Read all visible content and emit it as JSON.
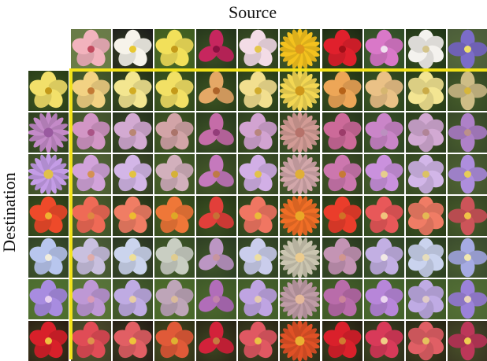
{
  "labels": {
    "source": "Source",
    "destination": "Destination"
  },
  "colors": {
    "frame": "#f2e21a"
  },
  "source_row": [
    {
      "icon": "pink-hibiscus-flower",
      "bg": "#6a7a4a",
      "petal": "#f2b3bd",
      "center": "#c24a5e",
      "n": 5
    },
    {
      "icon": "white-yellow-flower",
      "bg": "#1a1a1a",
      "petal": "#f6f3ea",
      "center": "#e8c830",
      "n": 5
    },
    {
      "icon": "yellow-flower",
      "bg": "#3d5a1e",
      "petal": "#f2e05a",
      "center": "#c49a1a",
      "n": 5
    },
    {
      "icon": "magenta-bud-flower",
      "bg": "#22321a",
      "petal": "#c7265e",
      "center": "#8a1040",
      "n": 3
    },
    {
      "icon": "pink-white-flower",
      "bg": "#2a3a1c",
      "petal": "#f3dce6",
      "center": "#e4c64a",
      "n": 5
    },
    {
      "icon": "yellow-daisy-flower",
      "bg": "#2f4420",
      "petal": "#f4c21e",
      "center": "#e0961a",
      "n": 20
    },
    {
      "icon": "red-geranium-flower",
      "bg": "#1a2612",
      "petal": "#e0202c",
      "center": "#a01018",
      "n": 5
    },
    {
      "icon": "pink-orchid-flower",
      "bg": "#2e4a26",
      "petal": "#d978c8",
      "center": "#f0e0f0",
      "n": 5
    },
    {
      "icon": "white-lily-flower",
      "bg": "#1e3216",
      "petal": "#f4f2ee",
      "center": "#d4c48a",
      "n": 6
    },
    {
      "icon": "purple-iris-flower",
      "bg": "#4a5a3a",
      "petal": "#7b6cc8",
      "center": "#f0e06a",
      "n": 4
    }
  ],
  "destination_col": [
    {
      "icon": "yellow-flower",
      "bg": "#263a16",
      "petal": "#f2e06a",
      "center": "#c49a1a",
      "n": 5
    },
    {
      "icon": "purple-thistle-flower",
      "bg": "#2a3a1e",
      "petal": "#c48ac8",
      "center": "#9a5aa0",
      "n": 16
    },
    {
      "icon": "lilac-aster-flower",
      "bg": "#3a4a26",
      "petal": "#c49ce6",
      "center": "#e0c04a",
      "n": 18
    },
    {
      "icon": "orange-red-flower",
      "bg": "#2a3a16",
      "petal": "#ee4a2a",
      "center": "#f0b030",
      "n": 5
    },
    {
      "icon": "pale-blue-flower",
      "bg": "#2e3e26",
      "petal": "#b8c6ee",
      "center": "#f2eedc",
      "n": 5
    },
    {
      "icon": "purple-flower",
      "bg": "#4a6a2e",
      "petal": "#a88ce0",
      "center": "#e8d0f0",
      "n": 5
    },
    {
      "icon": "red-flower",
      "bg": "#2a1a12",
      "petal": "#d8202a",
      "center": "#f0c040",
      "n": 5
    }
  ],
  "grid_cell_icon": "generated-flower"
}
